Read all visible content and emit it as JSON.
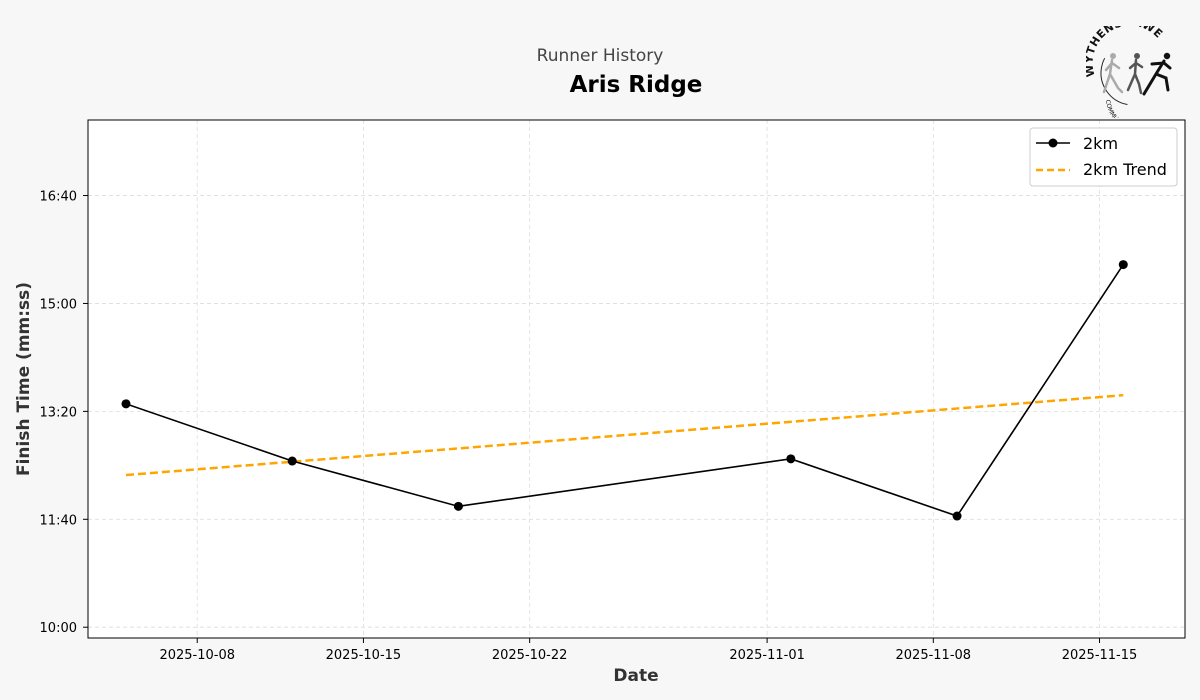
{
  "header": {
    "subtitle": "Runner History",
    "title": "Aris Ridge"
  },
  "logo": {
    "arc_top_text": "WYTHENSHAWE",
    "arc_bottom_text": "COMMUNITY RUN"
  },
  "chart_data": {
    "type": "line",
    "xlabel": "Date",
    "ylabel": "Finish Time (mm:ss)",
    "x_ticks": [
      "2025-10-08",
      "2025-10-15",
      "2025-10-22",
      "2025-11-01",
      "2025-11-08",
      "2025-11-15"
    ],
    "y_ticks": [
      "10:00",
      "11:40",
      "13:20",
      "15:00",
      "16:40"
    ],
    "ylim_seconds": [
      590,
      1070
    ],
    "xlim": [
      "2025-10-03",
      "2025-11-18"
    ],
    "grid": true,
    "legend_position": "top-right",
    "series": [
      {
        "name": "2km",
        "style": "solid-with-markers",
        "color": "#000000",
        "x": [
          "2025-10-05",
          "2025-10-12",
          "2025-10-19",
          "2025-11-02",
          "2025-11-09",
          "2025-11-16"
        ],
        "y": [
          "13:27",
          "12:34",
          "11:52",
          "12:36",
          "11:43",
          "15:36"
        ]
      },
      {
        "name": "2km Trend",
        "style": "dashed",
        "color": "#ffa500",
        "x": [
          "2025-10-05",
          "2025-11-16"
        ],
        "y": [
          "12:21",
          "13:35"
        ]
      }
    ]
  }
}
